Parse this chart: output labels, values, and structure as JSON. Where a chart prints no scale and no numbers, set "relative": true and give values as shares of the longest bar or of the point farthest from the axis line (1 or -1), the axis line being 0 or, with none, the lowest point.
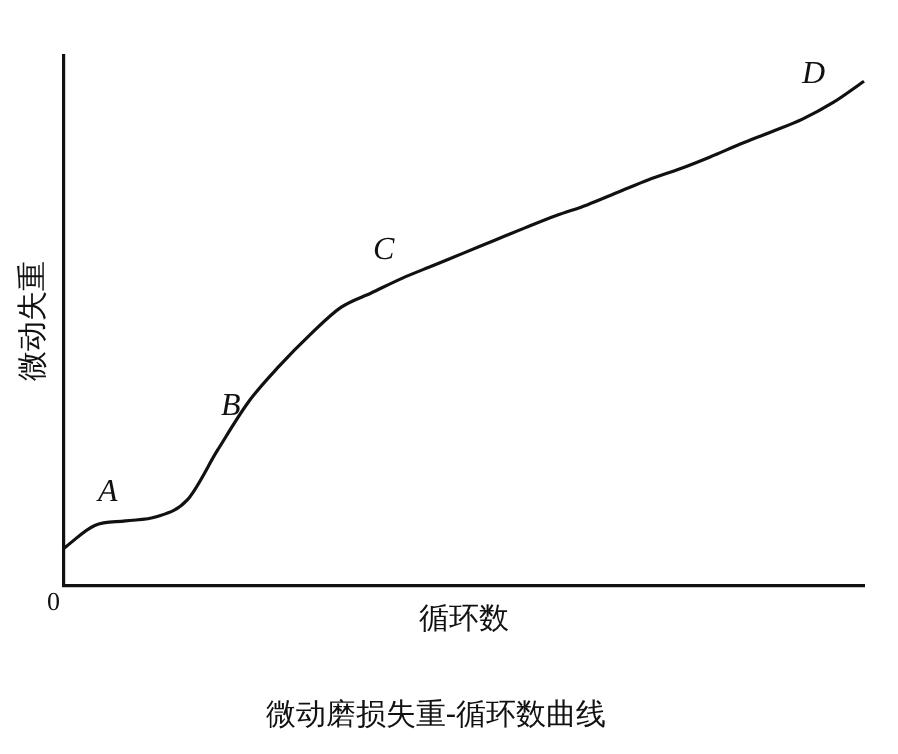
{
  "chart_data": {
    "type": "line",
    "title": "微动磨损失重-循环数曲线",
    "xlabel": "循环数",
    "ylabel": "微动失重",
    "relative": true,
    "legend": false,
    "grid": false,
    "marker": "none",
    "line_style": "solid",
    "categories": [
      null,
      null,
      null,
      null,
      null,
      null,
      null,
      null,
      null,
      null,
      null,
      null,
      null,
      null,
      null,
      null,
      null,
      null,
      null,
      null,
      null,
      null,
      null,
      null,
      null,
      null,
      null
    ],
    "series": [
      {
        "color": "#111111",
        "values": [
          0.075,
          0.12,
          0.129,
          0.137,
          0.17,
          0.27,
          0.365,
          0.436,
          0.498,
          0.552,
          0.581,
          0.61,
          0.635,
          0.66,
          0.685,
          0.71,
          0.734,
          0.755,
          0.78,
          0.805,
          0.826,
          0.85,
          0.876,
          0.9,
          0.925,
          0.958,
          1
        ]
      }
    ],
    "annotations": [
      "0",
      {
        "text": "A",
        "y": 0.129
      },
      {
        "text": "B",
        "y": 0.3
      },
      {
        "text": "C",
        "y": 0.61
      },
      {
        "text": "D",
        "y": 0.958
      }
    ]
  }
}
